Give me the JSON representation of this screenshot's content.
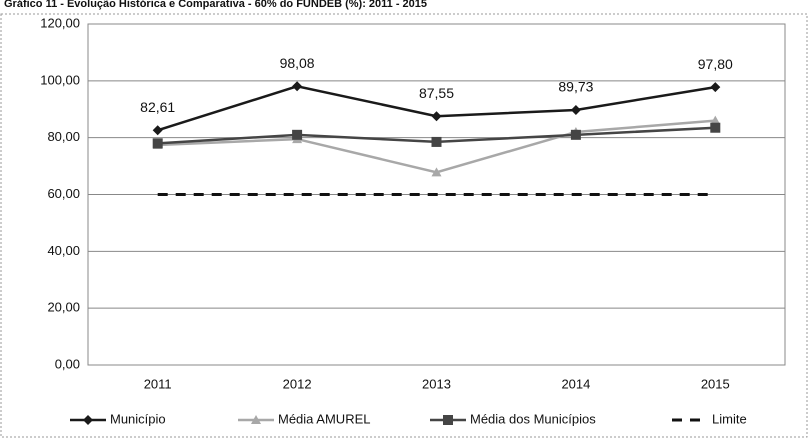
{
  "chart_data": {
    "type": "line",
    "title": "Gráfico 11 - Evolução Histórica e Comparativa - 60% do FUNDEB (%): 2011 - 2015",
    "categories": [
      "2011",
      "2012",
      "2013",
      "2014",
      "2015"
    ],
    "series": [
      {
        "name": "Município",
        "color": "#1a1a1a",
        "marker": "diamond",
        "values": [
          82.61,
          98.08,
          87.55,
          89.73,
          97.8
        ],
        "value_labels": [
          "82,61",
          "98,08",
          "87,55",
          "89,73",
          "97,80"
        ]
      },
      {
        "name": "Média AMUREL",
        "color": "#a8a8a8",
        "marker": "triangle",
        "values": [
          77.4,
          79.5,
          67.8,
          82.0,
          86.0
        ]
      },
      {
        "name": "Média dos Municípios",
        "color": "#454545",
        "marker": "square",
        "values": [
          78.0,
          81.0,
          78.5,
          81.0,
          83.5
        ]
      },
      {
        "name": "Limite",
        "color": "#111111",
        "dash": true,
        "values": [
          60,
          60,
          60,
          60,
          60
        ]
      }
    ],
    "ylim": [
      0,
      120
    ],
    "yticks": [
      {
        "value": 0,
        "label": "0,00"
      },
      {
        "value": 20,
        "label": "20,00"
      },
      {
        "value": 40,
        "label": "40,00"
      },
      {
        "value": 60,
        "label": "60,00"
      },
      {
        "value": 80,
        "label": "80,00"
      },
      {
        "value": 100,
        "label": "100,00"
      },
      {
        "value": 120,
        "label": "120,00"
      }
    ],
    "grid": true,
    "legend": "bottom"
  }
}
